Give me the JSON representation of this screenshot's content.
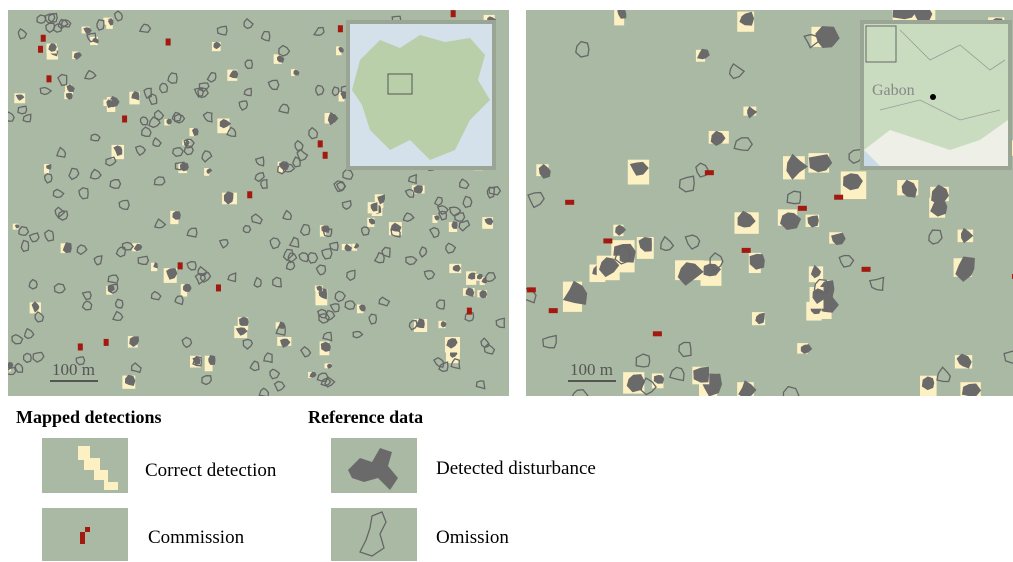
{
  "panels": [
    {
      "scale_label": "100 m"
    },
    {
      "scale_label": "100 m",
      "inset_label": "Gabon"
    }
  ],
  "legend": {
    "groups": [
      {
        "title": "Mapped detections",
        "items": [
          {
            "label": "Correct detection"
          },
          {
            "label": "Commission"
          }
        ]
      },
      {
        "title": "Reference data",
        "items": [
          {
            "label": "Detected disturbance"
          },
          {
            "label": "Omission"
          }
        ]
      }
    ]
  }
}
